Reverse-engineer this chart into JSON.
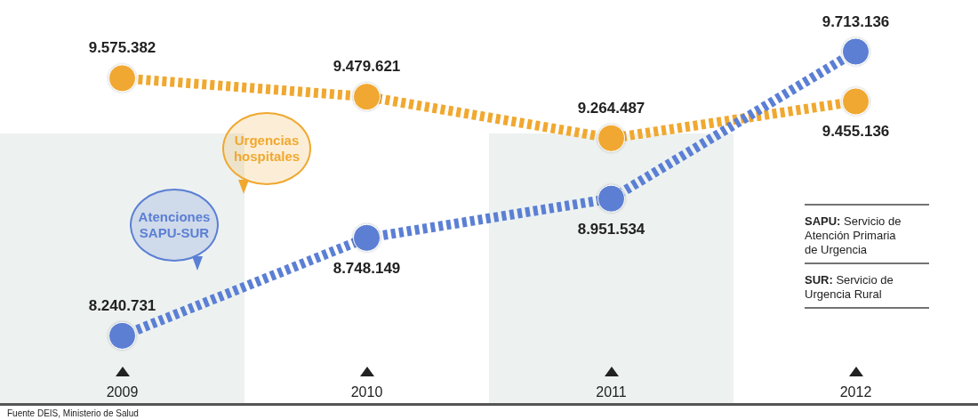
{
  "chart_data": {
    "type": "line",
    "categories": [
      "2009",
      "2010",
      "2011",
      "2012"
    ],
    "series": [
      {
        "name": "Urgencias hospitales",
        "color": "#f0a830",
        "values": [
          9575382,
          9479621,
          9264487,
          9455136
        ],
        "value_labels": [
          "9.575.382",
          "9.479.621",
          "9.264.487",
          "9.455.136"
        ]
      },
      {
        "name": "Atenciones SAPU-SUR",
        "color": "#5b7fd4",
        "values": [
          8240731,
          8748149,
          8951534,
          9713136
        ],
        "value_labels": [
          "8.240.731",
          "8.748.149",
          "8.951.534",
          "9.713.136"
        ]
      }
    ],
    "bands": [
      {
        "axis": "x",
        "from": "2009",
        "to": "2009",
        "color": "#edf2f1"
      },
      {
        "axis": "x",
        "from": "2011",
        "to": "2011",
        "color": "#edf2f1"
      }
    ],
    "annotations": [
      "SAPU: Servicio de Atención Primaria de Urgencia",
      "SUR: Servicio de Urgencia Rural",
      "Fuente DEIS, Ministerio de Salud"
    ],
    "marker": "circle",
    "line_style": "dashed",
    "legend": false,
    "grid": false,
    "tick_labels": "x"
  }
}
